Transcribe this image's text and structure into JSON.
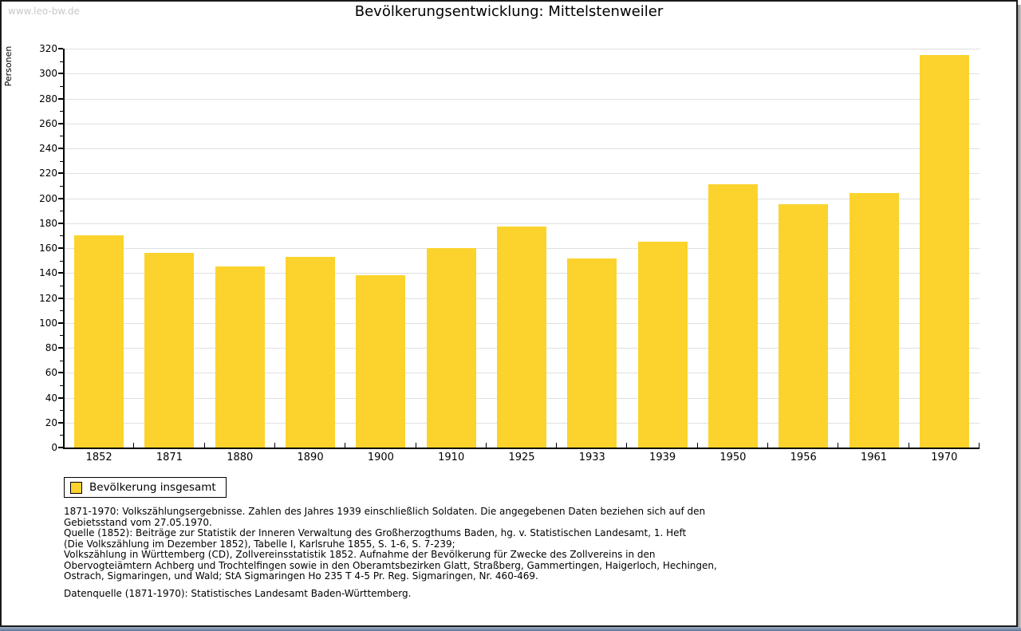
{
  "watermark": "www.leo-bw.de",
  "chart_data": {
    "type": "bar",
    "title": "Bevölkerungsentwicklung: Mittelstenweiler",
    "xlabel": "",
    "ylabel": "Personen",
    "categories": [
      "1852",
      "1871",
      "1880",
      "1890",
      "1900",
      "1910",
      "1925",
      "1933",
      "1939",
      "1950",
      "1956",
      "1961",
      "1970"
    ],
    "values": [
      170,
      156,
      145,
      153,
      138,
      160,
      177,
      152,
      165,
      211,
      195,
      204,
      315
    ],
    "series_name": "Bevölkerung insgesamt",
    "ylim": [
      0,
      320
    ],
    "ytick_step": 20,
    "ytick_minor_step": 10,
    "grid": true,
    "bar_color": "#FBD32C",
    "legend_position": "bottom-left"
  },
  "footer": {
    "notes_lines": [
      "1871-1970: Volkszählungsergebnisse. Zahlen des Jahres 1939 einschließlich Soldaten. Die angegebenen Daten beziehen sich auf den",
      "Gebietsstand vom 27.05.1970.",
      "Quelle (1852): Beiträge zur Statistik der Inneren Verwaltung des Großherzogthums Baden, hg. v. Statistischen Landesamt, 1. Heft",
      "(Die Volkszählung im Dezember 1852), Tabelle I, Karlsruhe 1855, S. 1-6, S. 7-239;",
      "Volkszählung in Württemberg (CD), Zollvereinsstatistik 1852. Aufnahme der Bevölkerung für Zwecke des Zollvereins in den",
      "Obervogteiämtern Achberg und Trochtelfingen sowie in den Oberamtsbezirken Glatt, Straßberg, Gammertingen, Haigerloch, Hechingen,",
      "Ostrach, Sigmaringen, und Wald; StA Sigmaringen Ho 235 T 4-5 Pr. Reg. Sigmaringen, Nr. 460-469."
    ],
    "source_line": "Datenquelle (1871-1970): Statistisches Landesamt Baden-Württemberg."
  }
}
